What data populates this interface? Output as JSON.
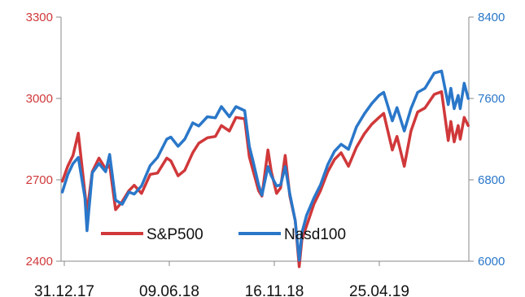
{
  "chart_data": {
    "type": "line",
    "title": "",
    "xlabel": "",
    "ylabel_left": "",
    "ylabel_right": "",
    "x_tick_labels": [
      "31.12.17",
      "09.06.18",
      "16.11.18",
      "25.04.19"
    ],
    "x_range": [
      "2017-12-31",
      "2019-09-05"
    ],
    "y_left": {
      "range": [
        2400,
        3300
      ],
      "ticks": [
        "2400",
        "2700",
        "3000",
        "3300"
      ],
      "color": "#d0383a"
    },
    "y_right": {
      "range": [
        6000,
        8400
      ],
      "ticks": [
        "6000",
        "6800",
        "7600",
        "8400"
      ],
      "color": "#2a77c9"
    },
    "grid": false,
    "legend_position": "bottom-left",
    "series": [
      {
        "name": "S&P500",
        "axis": "left",
        "color": "#d0383a",
        "x": [
          "2018-01-02",
          "2018-01-10",
          "2018-01-18",
          "2018-01-26",
          "2018-02-05",
          "2018-02-08",
          "2018-02-16",
          "2018-02-26",
          "2018-03-08",
          "2018-03-14",
          "2018-03-23",
          "2018-04-02",
          "2018-04-12",
          "2018-04-20",
          "2018-05-01",
          "2018-05-14",
          "2018-05-25",
          "2018-06-08",
          "2018-06-14",
          "2018-06-25",
          "2018-07-05",
          "2018-07-17",
          "2018-07-26",
          "2018-08-08",
          "2018-08-20",
          "2018-08-29",
          "2018-09-10",
          "2018-09-20",
          "2018-10-03",
          "2018-10-10",
          "2018-10-15",
          "2018-10-24",
          "2018-10-29",
          "2018-11-07",
          "2018-11-12",
          "2018-11-20",
          "2018-11-26",
          "2018-12-03",
          "2018-12-10",
          "2018-12-18",
          "2018-12-24",
          "2018-12-28",
          "2019-01-04",
          "2019-01-15",
          "2019-01-25",
          "2019-02-05",
          "2019-02-15",
          "2019-02-25",
          "2019-03-08",
          "2019-03-20",
          "2019-04-01",
          "2019-04-12",
          "2019-04-23",
          "2019-04-30",
          "2019-05-13",
          "2019-05-20",
          "2019-05-31",
          "2019-06-10",
          "2019-06-20",
          "2019-07-01",
          "2019-07-15",
          "2019-07-26",
          "2019-08-05",
          "2019-08-09",
          "2019-08-14",
          "2019-08-20",
          "2019-08-23",
          "2019-08-29",
          "2019-09-04"
        ],
        "values": [
          2695,
          2750,
          2790,
          2872,
          2650,
          2580,
          2730,
          2780,
          2740,
          2755,
          2590,
          2620,
          2660,
          2680,
          2650,
          2720,
          2725,
          2780,
          2770,
          2715,
          2735,
          2800,
          2835,
          2855,
          2860,
          2900,
          2880,
          2930,
          2925,
          2785,
          2740,
          2660,
          2640,
          2810,
          2730,
          2650,
          2670,
          2790,
          2640,
          2550,
          2380,
          2480,
          2530,
          2610,
          2660,
          2730,
          2775,
          2800,
          2750,
          2820,
          2870,
          2905,
          2930,
          2945,
          2810,
          2860,
          2750,
          2880,
          2950,
          2965,
          3015,
          3025,
          2845,
          2915,
          2840,
          2900,
          2850,
          2930,
          2900
        ]
      },
      {
        "name": "Nasd100",
        "axis": "right",
        "color": "#2a77c9",
        "x": [
          "2018-01-02",
          "2018-01-10",
          "2018-01-18",
          "2018-01-26",
          "2018-02-05",
          "2018-02-08",
          "2018-02-16",
          "2018-02-26",
          "2018-03-08",
          "2018-03-14",
          "2018-03-23",
          "2018-04-02",
          "2018-04-12",
          "2018-04-20",
          "2018-05-01",
          "2018-05-14",
          "2018-05-25",
          "2018-06-08",
          "2018-06-14",
          "2018-06-25",
          "2018-07-05",
          "2018-07-17",
          "2018-07-26",
          "2018-08-08",
          "2018-08-20",
          "2018-08-29",
          "2018-09-10",
          "2018-09-20",
          "2018-10-03",
          "2018-10-10",
          "2018-10-15",
          "2018-10-24",
          "2018-10-29",
          "2018-11-07",
          "2018-11-12",
          "2018-11-20",
          "2018-11-26",
          "2018-12-03",
          "2018-12-10",
          "2018-12-18",
          "2018-12-24",
          "2018-12-28",
          "2019-01-04",
          "2019-01-15",
          "2019-01-25",
          "2019-02-05",
          "2019-02-15",
          "2019-02-25",
          "2019-03-08",
          "2019-03-20",
          "2019-04-01",
          "2019-04-12",
          "2019-04-23",
          "2019-04-30",
          "2019-05-13",
          "2019-05-20",
          "2019-05-31",
          "2019-06-10",
          "2019-06-20",
          "2019-07-01",
          "2019-07-15",
          "2019-07-26",
          "2019-08-05",
          "2019-08-09",
          "2019-08-14",
          "2019-08-20",
          "2019-08-23",
          "2019-08-29",
          "2019-09-04"
        ],
        "values": [
          6680,
          6850,
          6960,
          7020,
          6620,
          6300,
          6870,
          6960,
          6880,
          7050,
          6600,
          6560,
          6680,
          6660,
          6740,
          6940,
          7020,
          7200,
          7220,
          7130,
          7200,
          7360,
          7330,
          7420,
          7410,
          7520,
          7420,
          7520,
          7480,
          7130,
          7000,
          6750,
          6650,
          6930,
          6840,
          6740,
          6750,
          6930,
          6660,
          6400,
          6010,
          6280,
          6450,
          6620,
          6750,
          6950,
          7080,
          7150,
          7100,
          7320,
          7450,
          7550,
          7630,
          7660,
          7380,
          7510,
          7280,
          7500,
          7660,
          7700,
          7850,
          7870,
          7540,
          7700,
          7500,
          7630,
          7500,
          7750,
          7600
        ]
      }
    ]
  }
}
